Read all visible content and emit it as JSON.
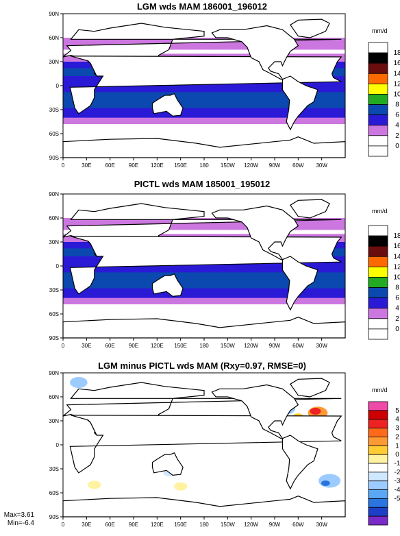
{
  "chart_data": [
    {
      "type": "heatmap",
      "title": "LGM wds MAM 186001_196012",
      "units": "mm/d",
      "lat_ticks": [
        "90N",
        "60N",
        "30N",
        "0",
        "30S",
        "60S",
        "90S"
      ],
      "lon_ticks": [
        "0",
        "30E",
        "60E",
        "90E",
        "120E",
        "150E",
        "180",
        "150W",
        "120W",
        "90W",
        "60W",
        "30W"
      ],
      "legend_levels": [
        "18",
        "16",
        "14",
        "12",
        "10",
        "8",
        "6",
        "4",
        "2",
        "0"
      ],
      "legend_colors": [
        "#ffffff",
        "#000000",
        "#6b0d0d",
        "#ff6a00",
        "#ffff00",
        "#22aa22",
        "#0b48b0",
        "#2a1ad6",
        "#cc77e0",
        "#ffffff",
        "#ffffff"
      ]
    },
    {
      "type": "heatmap",
      "title": "PICTL wds MAM 185001_195012",
      "units": "mm/d",
      "lat_ticks": [
        "90N",
        "60N",
        "30N",
        "0",
        "30S",
        "60S",
        "90S"
      ],
      "lon_ticks": [
        "0",
        "30E",
        "60E",
        "90E",
        "120E",
        "150E",
        "180",
        "150W",
        "120W",
        "90W",
        "60W",
        "30W"
      ],
      "legend_levels": [
        "18",
        "16",
        "14",
        "12",
        "10",
        "8",
        "6",
        "4",
        "2",
        "0"
      ],
      "legend_colors": [
        "#ffffff",
        "#000000",
        "#6b0d0d",
        "#ff6a00",
        "#ffff00",
        "#22aa22",
        "#0b48b0",
        "#2a1ad6",
        "#cc77e0",
        "#ffffff",
        "#ffffff"
      ]
    },
    {
      "type": "heatmap",
      "title": "LGM minus PICTL wds MAM (Rxy=0.97, RMSE=0)",
      "units": "mm/d",
      "lat_ticks": [
        "90N",
        "60N",
        "30N",
        "0",
        "30S",
        "60S",
        "90S"
      ],
      "lon_ticks": [
        "0",
        "30E",
        "60E",
        "90E",
        "120E",
        "150E",
        "180",
        "150W",
        "120W",
        "90W",
        "60W",
        "30W"
      ],
      "legend_levels": [
        "5",
        "4",
        "3",
        "2",
        "1",
        "0",
        "-1",
        "-2",
        "-3",
        "-4",
        "-5"
      ],
      "legend_colors": [
        "#ee4aa8",
        "#cc0000",
        "#ee2222",
        "#ff6a1a",
        "#ff9933",
        "#ffcc33",
        "#fff2a0",
        "#ffffff",
        "#cfe8ff",
        "#9ccbff",
        "#5aa8f5",
        "#2a74e0",
        "#1d3fc8",
        "#7a2ac8"
      ],
      "max": "Max=3.61",
      "min": "Min=-6.4"
    }
  ]
}
